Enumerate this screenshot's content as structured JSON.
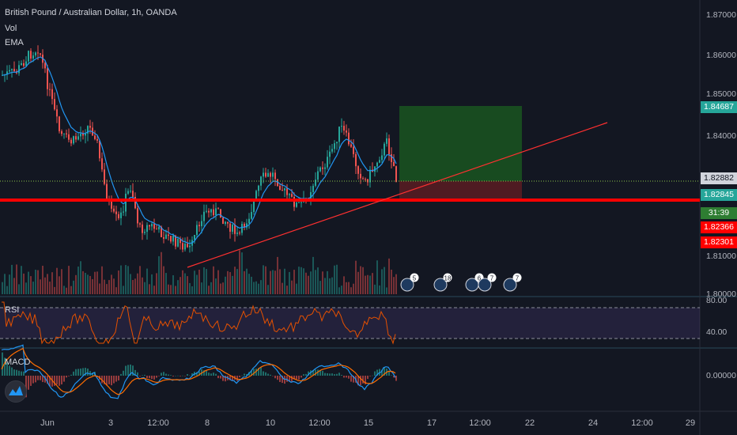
{
  "header": {
    "symbol_line": "British Pound / Australian Dollar, 1h, OANDA",
    "indicator_vol": "Vol",
    "indicator_ema": "EMA"
  },
  "price_axis": {
    "ticks": [
      "1.87000",
      "1.86000",
      "1.85000",
      "1.84000",
      "1.81000",
      "1.80000"
    ],
    "tags": [
      {
        "label": "1.84687",
        "bg": "#26a69a",
        "fg": "#ffffff"
      },
      {
        "label": "1.82882",
        "bg": "#d1d4dc",
        "fg": "#131722"
      },
      {
        "label": "1.82845",
        "bg": "#26a69a",
        "fg": "#ffffff"
      },
      {
        "label": "31:39",
        "bg": "#2e7d32",
        "fg": "#ffffff"
      },
      {
        "label": "1.82366",
        "bg": "#ff0000",
        "fg": "#ffffff"
      },
      {
        "label": "1.82301",
        "bg": "#ff0000",
        "fg": "#ffffff"
      }
    ]
  },
  "rsi_pane": {
    "label": "RSI",
    "ticks": [
      "80.00",
      "40.00"
    ]
  },
  "macd_pane": {
    "label": "MACD",
    "ticks": [
      "0.00000"
    ]
  },
  "time_axis": {
    "labels": [
      "Jun",
      "3",
      "12:00",
      "8",
      "10",
      "12:00",
      "15",
      "17",
      "12:00",
      "22",
      "24",
      "12:00",
      "29"
    ]
  },
  "events": [
    "5",
    "18",
    "6",
    "7",
    "7"
  ],
  "colors": {
    "background": "#131722",
    "up": "#26a69a",
    "down": "#ef5350",
    "ema": "#2196f3",
    "support_line": "#ff0000",
    "trend_line": "#ff3030"
  }
}
